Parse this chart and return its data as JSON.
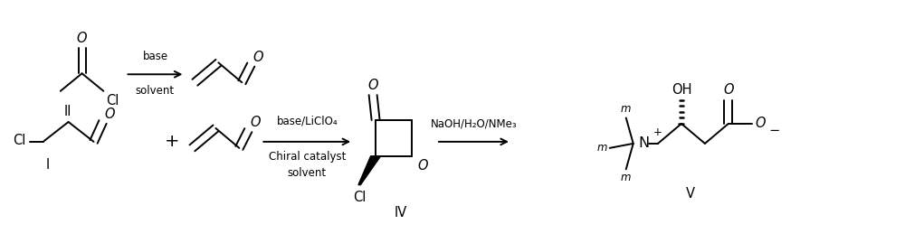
{
  "bg_color": "#ffffff",
  "text_color": "#000000",
  "figsize": [
    10.0,
    2.69
  ],
  "dpi": 100,
  "labels": {
    "II": "II",
    "I": "I",
    "IV": "IV",
    "V": "V",
    "r1_above": "base",
    "r1_below": "solvent",
    "r2_above": "base/LiClO₄",
    "r2_mid": "Chiral catalyst",
    "r2_below": "solvent",
    "r3": "NaOH/H₂O/NMe₃",
    "plus": "+",
    "Cl": "Cl",
    "O": "O",
    "OH": "OH",
    "N": "N",
    "plus_charge": "+"
  },
  "colors": {
    "line": "#000000",
    "text": "#000000",
    "bg": "#ffffff"
  }
}
